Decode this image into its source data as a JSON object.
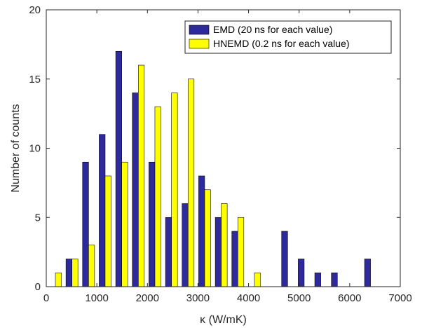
{
  "chart_data": {
    "type": "bar",
    "xlabel": "κ (W/mK)",
    "ylabel": "Number of counts",
    "xlim": [
      0,
      7000
    ],
    "ylim": [
      0,
      20
    ],
    "xticks": [
      0,
      1000,
      2000,
      3000,
      4000,
      5000,
      6000,
      7000
    ],
    "yticks": [
      0,
      5,
      10,
      15,
      20
    ],
    "xtick_labels": [
      "0",
      "1000",
      "2000",
      "3000",
      "4000",
      "5000",
      "6000",
      "7000"
    ],
    "ytick_labels": [
      "0",
      "5",
      "10",
      "15",
      "20"
    ],
    "bin_width": 328,
    "legend_position": "top-right",
    "grid": false,
    "series": [
      {
        "name": "EMD (20 ns for each value)",
        "color": "#2E2A9B",
        "x": [
          180,
          508,
          836,
          1164,
          1492,
          1820,
          2148,
          2476,
          2804,
          3132,
          3460,
          3788,
          4116,
          4444,
          4772,
          5100,
          5428,
          5756,
          6084,
          6412
        ],
        "values": [
          0,
          2,
          9,
          11,
          17,
          14,
          9,
          5,
          6,
          8,
          5,
          4,
          0,
          0,
          4,
          2,
          1,
          1,
          0,
          2
        ]
      },
      {
        "name": "HNEMD (0.2 ns for each value)",
        "color": "#FFFF00",
        "x": [
          180,
          508,
          836,
          1164,
          1492,
          1820,
          2148,
          2476,
          2804,
          3132,
          3460,
          3788,
          4116,
          4444,
          4772,
          5100,
          5428,
          5756,
          6084,
          6412
        ],
        "values": [
          1,
          2,
          3,
          8,
          9,
          16,
          13,
          14,
          15,
          7,
          6,
          5,
          1,
          0,
          0,
          0,
          0,
          0,
          0,
          0
        ]
      }
    ]
  }
}
